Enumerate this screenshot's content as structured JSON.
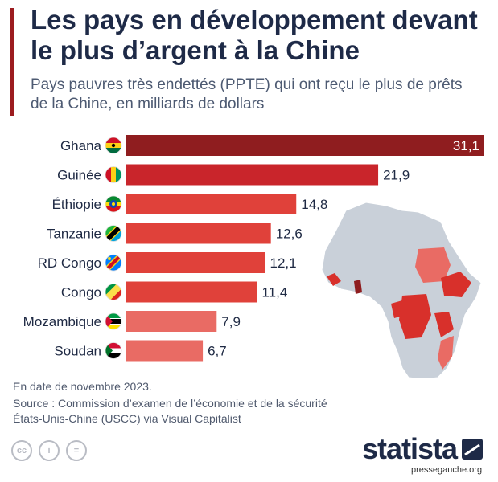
{
  "header": {
    "title": "Les pays en développement devant le plus d’argent à la Chine",
    "subtitle": "Pays pauvres très endettés (PPTE) qui ont reçu le plus de prêts de la Chine, en milliards de dollars"
  },
  "chart_data": {
    "type": "bar",
    "orientation": "horizontal",
    "title": "Les pays en développement devant le plus d’argent à la Chine",
    "subtitle": "Pays pauvres très endettés (PPTE) qui ont reçu le plus de prêts de la Chine, en milliards de dollars",
    "categories": [
      "Ghana",
      "Guinée",
      "Éthiopie",
      "Tanzanie",
      "RD Congo",
      "Congo",
      "Mozambique",
      "Soudan"
    ],
    "values": [
      31.1,
      21.9,
      14.8,
      12.6,
      12.1,
      11.4,
      7.9,
      6.7
    ],
    "value_labels": [
      "31,1",
      "21,9",
      "14,8",
      "12,6",
      "12,1",
      "11,4",
      "7,9",
      "6,7"
    ],
    "flag_icons": [
      "ghana-flag-icon",
      "guinea-flag-icon",
      "ethiopia-flag-icon",
      "tanzania-flag-icon",
      "dr-congo-flag-icon",
      "congo-flag-icon",
      "mozambique-flag-icon",
      "sudan-flag-icon"
    ],
    "bar_colors": [
      "#8f1d1f",
      "#c9252b",
      "#e0413a",
      "#e0413a",
      "#e0413a",
      "#e0413a",
      "#e96b64",
      "#e96b64"
    ],
    "xlim": [
      0,
      31.1
    ],
    "grid": false,
    "legend": "none"
  },
  "map": {
    "icon": "africa-map-icon",
    "base_color": "#c9d0d9",
    "highlight_color": "#d8302b"
  },
  "footer": {
    "date_note": "En date de novembre 2023.",
    "source": "Source : Commission d’examen de l’économie et de la sécurité États-Unis-Chine (USCC) via Visual Capitalist",
    "license_icons": [
      "cc-icon",
      "person-icon",
      "equals-icon"
    ],
    "license_labels": [
      "cc",
      "i",
      "="
    ],
    "brand": "statista",
    "watermark": "pressegauche.org"
  },
  "colors": {
    "title": "#1e2a47",
    "accent": "#9c1c1f",
    "text": "#1f2a44"
  }
}
